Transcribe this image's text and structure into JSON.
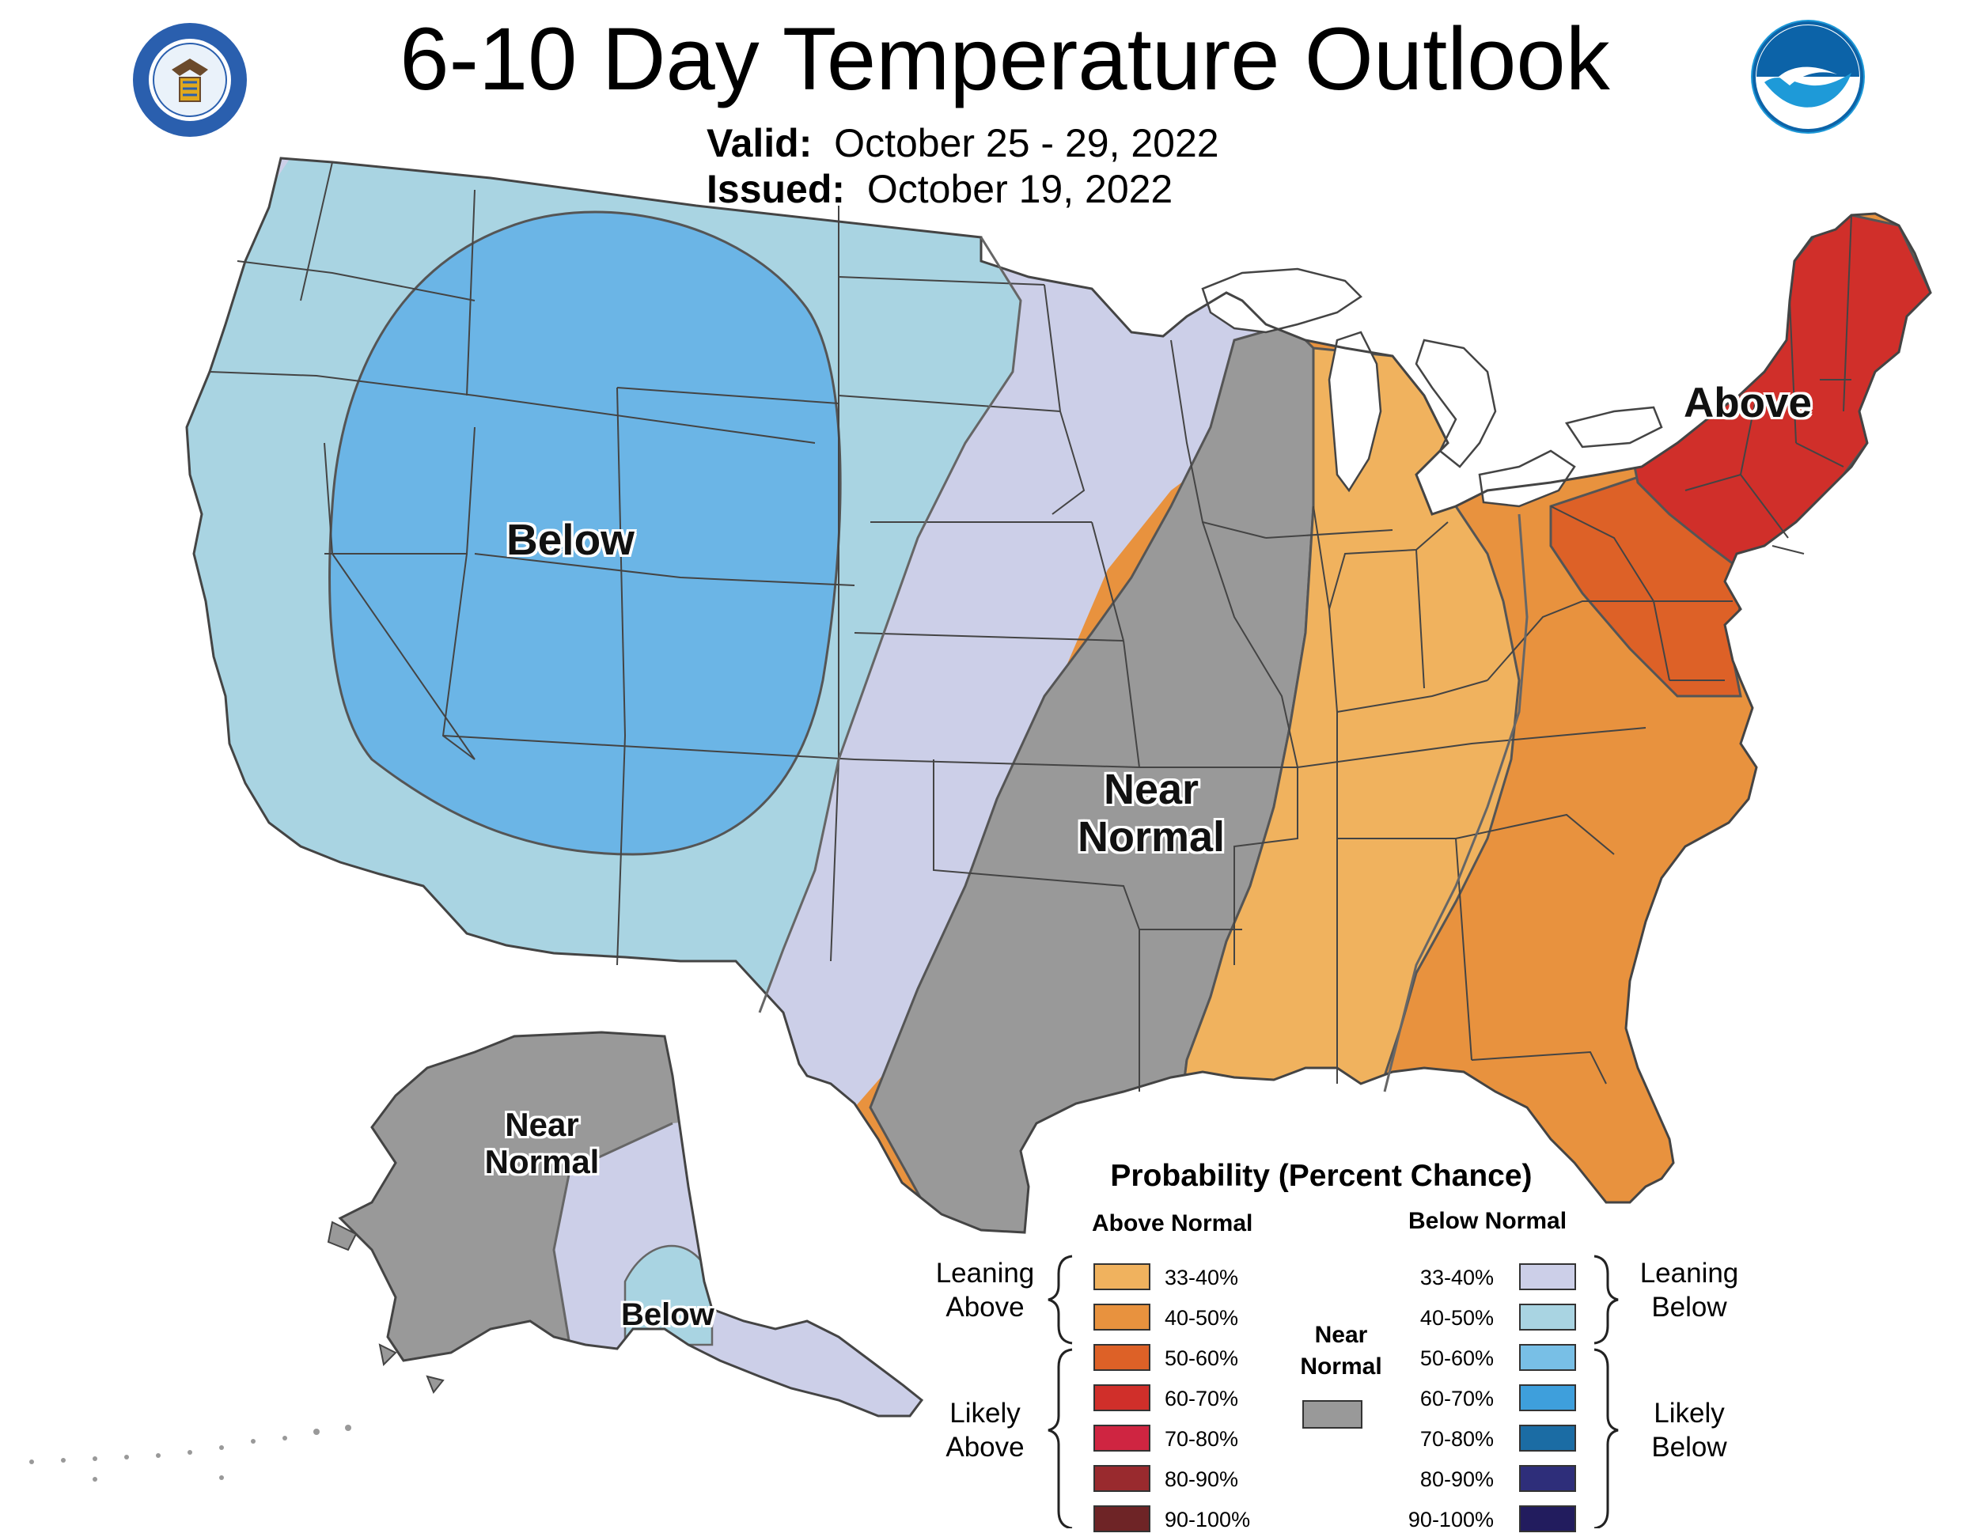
{
  "header": {
    "title": "6-10 Day Temperature Outlook",
    "valid_label": "Valid:",
    "valid_value": "October 25 - 29, 2022",
    "issued_label": "Issued:",
    "issued_value": "October 19, 2022"
  },
  "logos": {
    "commerce_seal_text": "DEPARTMENT OF COMMERCE · UNITED STATES OF AMERICA",
    "noaa_text": "NOAA"
  },
  "map_labels": {
    "below_west": "Below",
    "near_normal_central_1": "Near",
    "near_normal_central_2": "Normal",
    "above_northeast": "Above",
    "alaska_near_1": "Near",
    "alaska_near_2": "Normal",
    "alaska_below": "Below"
  },
  "legend": {
    "title": "Probability (Percent Chance)",
    "above_header": "Above Normal",
    "below_header": "Below Normal",
    "near_label_1": "Near",
    "near_label_2": "Normal",
    "near_color": "#999999",
    "leaning_above_1": "Leaning",
    "leaning_above_2": "Above",
    "likely_above_1": "Likely",
    "likely_above_2": "Above",
    "leaning_below_1": "Leaning",
    "leaning_below_2": "Below",
    "likely_below_1": "Likely",
    "likely_below_2": "Below",
    "above": [
      {
        "range": "33-40%",
        "color": "#F0B25E"
      },
      {
        "range": "40-50%",
        "color": "#E8923E"
      },
      {
        "range": "50-60%",
        "color": "#DD6127"
      },
      {
        "range": "60-70%",
        "color": "#D02F2A"
      },
      {
        "range": "70-80%",
        "color": "#CF2541"
      },
      {
        "range": "80-90%",
        "color": "#992A2E"
      },
      {
        "range": "90-100%",
        "color": "#6E2426"
      }
    ],
    "below": [
      {
        "range": "33-40%",
        "color": "#CCCFE8"
      },
      {
        "range": "40-50%",
        "color": "#A9D4E2"
      },
      {
        "range": "50-60%",
        "color": "#78BFE6"
      },
      {
        "range": "60-70%",
        "color": "#3E9FDC"
      },
      {
        "range": "70-80%",
        "color": "#1B6CA4"
      },
      {
        "range": "80-90%",
        "color": "#2E2E7A"
      },
      {
        "range": "90-100%",
        "color": "#221C5E"
      }
    ]
  },
  "regions": {
    "west_below_light": "#A9D4E2",
    "rockies_below_core": "#6BB5E6",
    "leaning_below_band": "#CCCFE8",
    "near_normal": "#999999",
    "leaning_above": "#F0B25E",
    "above_40_50": "#E8923E",
    "above_50_60": "#DD6127",
    "above_60_70": "#D02F2A",
    "lakes": "#FFFFFF",
    "border": "#333333"
  }
}
